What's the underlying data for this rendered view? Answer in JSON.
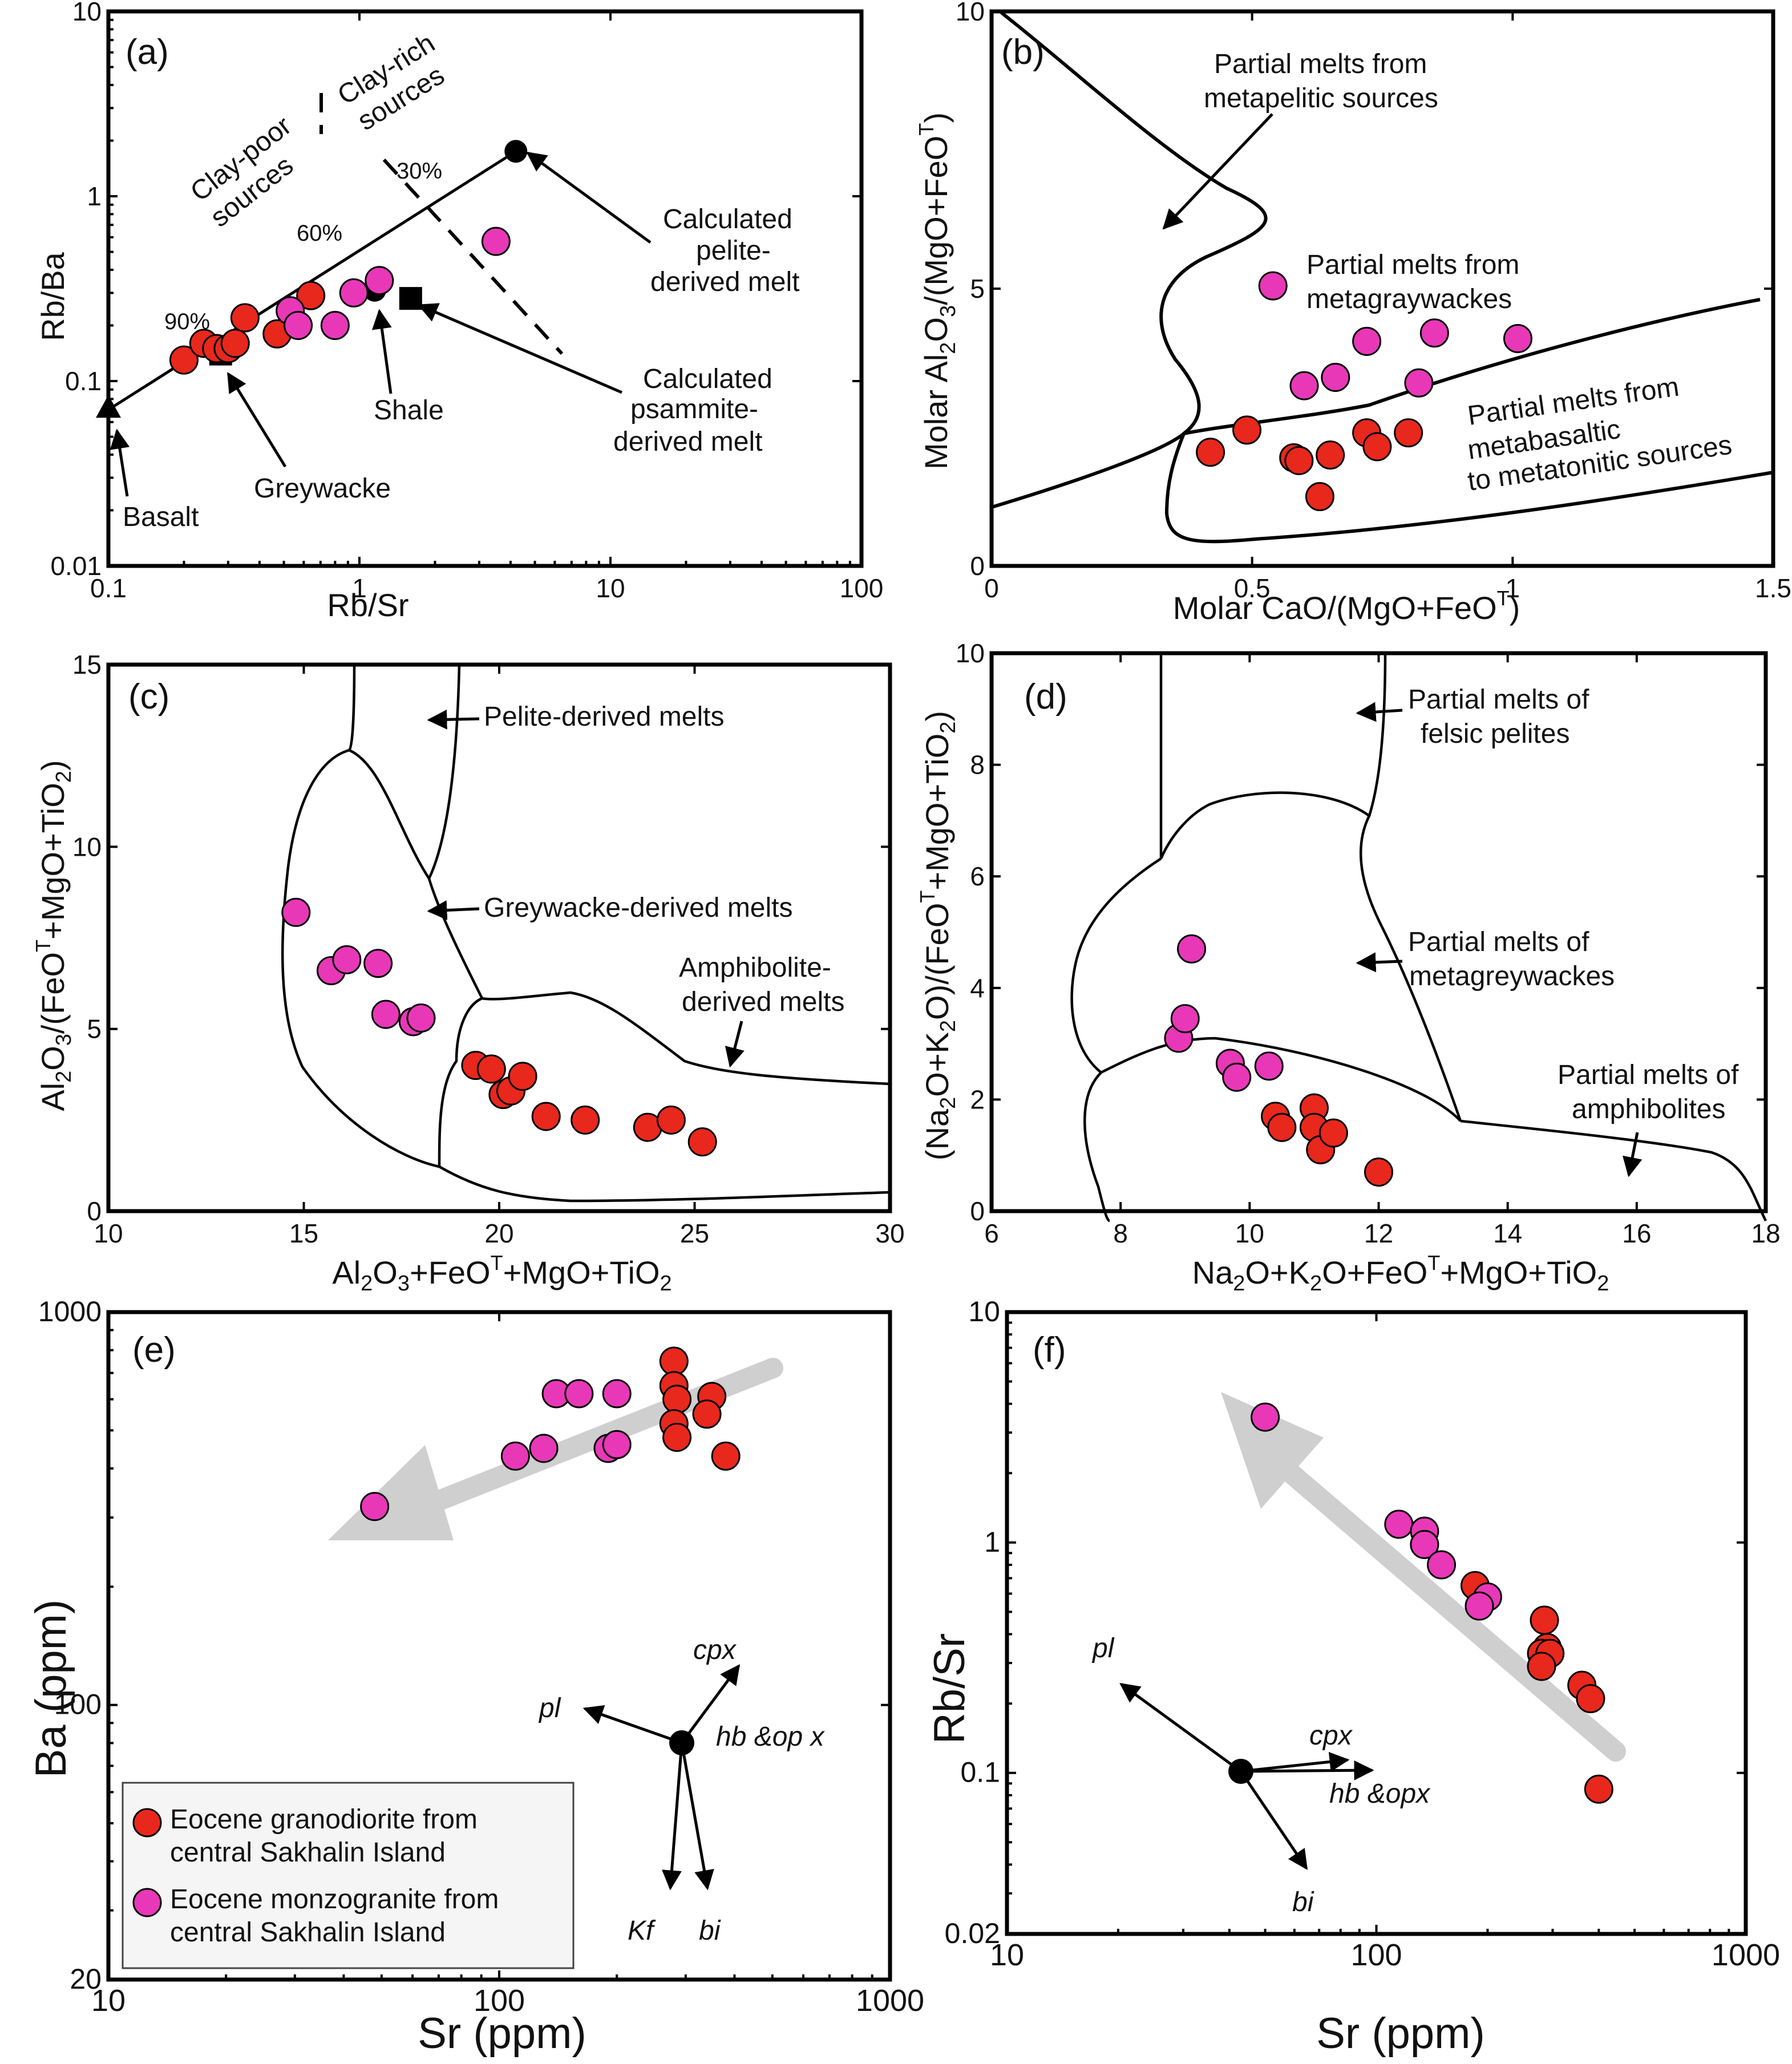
{
  "colors": {
    "granodiorite": "#e8281c",
    "monzogranite": "#e838b8",
    "trend_arrow": "#cfcfcf"
  },
  "legend": {
    "granodiorite_line1": "Eocene granodiorite from",
    "granodiorite_line2": "central Sakhalin Island",
    "monzogranite_line1": "Eocene monzogranite from",
    "monzogranite_line2": "central Sakhalin Island"
  },
  "chart_data": [
    {
      "panel": "(a)",
      "type": "scatter",
      "x_scale": "log",
      "y_scale": "log",
      "xlabel": "Rb/Sr",
      "ylabel": "Rb/Ba",
      "xlim": [
        0.1,
        100
      ],
      "ylim": [
        0.01,
        10
      ],
      "xticks": [
        "0.1",
        "1",
        "10",
        "100"
      ],
      "yticks": [
        "0.01",
        "0.1",
        "1",
        "10"
      ],
      "annotations": {
        "clay_poor_1": "Clay-poor",
        "clay_poor_2": "sources",
        "clay_rich_1": "Clay-rich",
        "clay_rich_2": "sources",
        "pct90": "90%",
        "pct60": "60%",
        "pct30": "30%",
        "pelite_1": "Calculated",
        "pelite_2": "pelite-",
        "pelite_3": "derived melt",
        "psammite_1": "Calculated",
        "psammite_2": "psammite-",
        "psammite_3": "derived melt",
        "shale": "Shale",
        "greywacke": "Greywacke",
        "basalt": "Basalt"
      },
      "mixing_line": [
        [
          0.1,
          0.07
        ],
        [
          4.2,
          1.75
        ]
      ],
      "endmembers": {
        "basalt": [
          0.1,
          0.07
        ],
        "pelite_melt": [
          4.2,
          1.75
        ],
        "shale": [
          1.15,
          0.31
        ],
        "greywacke": [
          0.28,
          0.14
        ],
        "psammite_melt": [
          1.6,
          0.28
        ]
      },
      "series": [
        {
          "name": "Eocene granodiorite from central Sakhalin Island",
          "points": [
            [
              0.2,
              0.13
            ],
            [
              0.24,
              0.16
            ],
            [
              0.27,
              0.15
            ],
            [
              0.3,
              0.15
            ],
            [
              0.32,
              0.16
            ],
            [
              0.35,
              0.22
            ],
            [
              0.47,
              0.18
            ],
            [
              0.64,
              0.29
            ]
          ]
        },
        {
          "name": "Eocene monzogranite from central Sakhalin Island",
          "points": [
            [
              0.53,
              0.24
            ],
            [
              0.57,
              0.2
            ],
            [
              0.8,
              0.2
            ],
            [
              0.95,
              0.3
            ],
            [
              1.2,
              0.35
            ],
            [
              3.5,
              0.57
            ]
          ]
        }
      ]
    },
    {
      "panel": "(b)",
      "type": "scatter",
      "xlabel": "Molar CaO/(MgO+FeOT)",
      "ylabel": "Molar Al2O3/(MgO+FeOT)",
      "xlim": [
        0,
        1.5
      ],
      "ylim": [
        0,
        10
      ],
      "xticks": [
        "0",
        "0.5",
        "1",
        "1.5"
      ],
      "yticks": [
        "0",
        "5",
        "10"
      ],
      "annotations": {
        "metapelitic_1": "Partial melts from",
        "metapelitic_2": "metapelitic sources",
        "metagraywacke_1": "Partial melts from",
        "metagraywacke_2": "metagraywackes",
        "metabasaltic_1": "Partial melts from",
        "metabasaltic_2": "metabasaltic",
        "metabasaltic_3": "to metatonitic sources"
      },
      "series": [
        {
          "name": "Eocene granodiorite from central Sakhalin Island",
          "points": [
            [
              0.42,
              2.05
            ],
            [
              0.49,
              2.45
            ],
            [
              0.58,
              1.95
            ],
            [
              0.59,
              1.9
            ],
            [
              0.65,
              2.0
            ],
            [
              0.63,
              1.25
            ],
            [
              0.72,
              2.4
            ],
            [
              0.74,
              2.15
            ],
            [
              0.8,
              2.4
            ]
          ]
        },
        {
          "name": "Eocene monzogranite from central Sakhalin Island",
          "points": [
            [
              0.54,
              5.05
            ],
            [
              0.6,
              3.25
            ],
            [
              0.66,
              3.4
            ],
            [
              0.72,
              4.05
            ],
            [
              0.82,
              3.3
            ],
            [
              0.85,
              4.2
            ],
            [
              1.01,
              4.1
            ]
          ]
        }
      ]
    },
    {
      "panel": "(c)",
      "type": "scatter",
      "xlabel": "Al2O3+FeOT+MgO+TiO2",
      "ylabel": "Al2O3/(FeOT+MgO+TiO2)",
      "xlim": [
        10,
        30
      ],
      "ylim": [
        0,
        15
      ],
      "xticks": [
        "10",
        "15",
        "20",
        "25",
        "30"
      ],
      "yticks": [
        "0",
        "5",
        "10",
        "15"
      ],
      "annotations": {
        "pelite": "Pelite-derived melts",
        "greywacke": "Greywacke-derived melts",
        "amphibolite_1": "Amphibolite-",
        "amphibolite_2": "derived melts"
      },
      "series": [
        {
          "name": "Eocene granodiorite from central Sakhalin Island",
          "points": [
            [
              19.4,
              4.0
            ],
            [
              19.8,
              3.9
            ],
            [
              20.1,
              3.2
            ],
            [
              20.3,
              3.3
            ],
            [
              20.6,
              3.7
            ],
            [
              21.2,
              2.6
            ],
            [
              22.2,
              2.5
            ],
            [
              23.8,
              2.3
            ],
            [
              24.4,
              2.5
            ],
            [
              25.2,
              1.9
            ]
          ]
        },
        {
          "name": "Eocene monzogranite from central Sakhalin Island",
          "points": [
            [
              14.8,
              8.2
            ],
            [
              15.7,
              6.6
            ],
            [
              16.1,
              6.9
            ],
            [
              16.9,
              6.8
            ],
            [
              17.1,
              5.4
            ],
            [
              17.8,
              5.2
            ],
            [
              18.0,
              5.3
            ]
          ]
        }
      ]
    },
    {
      "panel": "(d)",
      "type": "scatter",
      "xlabel": "Na2O+K2O+FeOT+MgO+TiO2",
      "ylabel": "(Na2O+K2O)/(FeOT+MgO+TiO2)",
      "xlim": [
        6,
        18
      ],
      "ylim": [
        0,
        10
      ],
      "xticks": [
        "6",
        "8",
        "10",
        "12",
        "14",
        "16",
        "18"
      ],
      "yticks": [
        "0",
        "2",
        "4",
        "6",
        "8",
        "10"
      ],
      "annotations": {
        "felsic_1": "Partial melts of",
        "felsic_2": "felsic pelites",
        "metagreywacke_1": "Partial melts of",
        "metagreywacke_2": "metagreywackes",
        "amphibolite_1": "Partial melts of",
        "amphibolite_2": "amphibolites"
      },
      "series": [
        {
          "name": "Eocene granodiorite from central Sakhalin Island",
          "points": [
            [
              10.4,
              1.7
            ],
            [
              10.5,
              1.5
            ],
            [
              11.0,
              1.85
            ],
            [
              11.0,
              1.5
            ],
            [
              11.1,
              1.1
            ],
            [
              11.3,
              1.4
            ],
            [
              12.0,
              0.7
            ]
          ]
        },
        {
          "name": "Eocene monzogranite from central Sakhalin Island",
          "points": [
            [
              8.9,
              3.1
            ],
            [
              9.0,
              3.45
            ],
            [
              9.1,
              4.7
            ],
            [
              9.7,
              2.65
            ],
            [
              9.8,
              2.4
            ],
            [
              10.3,
              2.6
            ]
          ]
        }
      ]
    },
    {
      "panel": "(e)",
      "type": "scatter",
      "x_scale": "log",
      "y_scale": "log",
      "xlabel": "Sr (ppm)",
      "ylabel": "Ba (ppm)",
      "xlim": [
        10,
        1000
      ],
      "ylim": [
        20,
        1000
      ],
      "xticks": [
        "10",
        "100",
        "1000"
      ],
      "yticks": [
        "20",
        "100",
        "1000"
      ],
      "vectors": {
        "pl": "pl",
        "cpx": "cpx",
        "hb_opx": "hb &op x",
        "kf": "Kf",
        "bi": "bi"
      },
      "series": [
        {
          "name": "Eocene granodiorite from central Sakhalin Island",
          "points": [
            [
              280,
              750
            ],
            [
              280,
              650
            ],
            [
              285,
              600
            ],
            [
              350,
              610
            ],
            [
              340,
              550
            ],
            [
              280,
              520
            ],
            [
              285,
              480
            ],
            [
              380,
              430
            ]
          ]
        },
        {
          "name": "Eocene monzogranite from central Sakhalin Island",
          "points": [
            [
              140,
              620
            ],
            [
              160,
              620
            ],
            [
              200,
              620
            ],
            [
              190,
              450
            ],
            [
              200,
              460
            ],
            [
              130,
              450
            ],
            [
              110,
              430
            ],
            [
              48,
              320
            ]
          ]
        }
      ]
    },
    {
      "panel": "(f)",
      "type": "scatter",
      "x_scale": "log",
      "y_scale": "log",
      "xlabel": "Sr (ppm)",
      "ylabel": "Rb/Sr",
      "xlim": [
        10,
        1000
      ],
      "ylim": [
        0.02,
        10
      ],
      "xticks": [
        "10",
        "100",
        "1000"
      ],
      "yticks": [
        "0.02",
        "0.1",
        "1",
        "10"
      ],
      "vectors": {
        "pl": "pl",
        "cpx": "cpx",
        "hb_opx": "hb &opx",
        "bi": "bi"
      },
      "series": [
        {
          "name": "Eocene granodiorite from central Sakhalin Island",
          "points": [
            [
              185,
              0.65
            ],
            [
              285,
              0.46
            ],
            [
              290,
              0.35
            ],
            [
              280,
              0.33
            ],
            [
              295,
              0.33
            ],
            [
              280,
              0.29
            ],
            [
              360,
              0.24
            ],
            [
              380,
              0.21
            ],
            [
              400,
              0.085
            ]
          ]
        },
        {
          "name": "Eocene monzogranite from central Sakhalin Island",
          "points": [
            [
              50,
              3.5
            ],
            [
              115,
              1.2
            ],
            [
              135,
              1.12
            ],
            [
              135,
              0.98
            ],
            [
              150,
              0.8
            ],
            [
              200,
              0.58
            ],
            [
              190,
              0.53
            ]
          ]
        }
      ]
    }
  ]
}
